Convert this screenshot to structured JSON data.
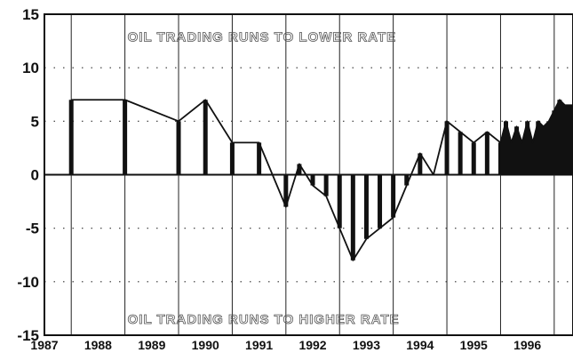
{
  "chart_data": {
    "type": "area",
    "title": "",
    "xlabel": "",
    "ylabel": "",
    "ylim": [
      -15,
      15
    ],
    "xlim": [
      1987,
      1996.85
    ],
    "grid": true,
    "legend": "none",
    "y_ticks": [
      "15",
      "10",
      "5",
      "0",
      "-5",
      "-10",
      "-15"
    ],
    "y_tick_values": [
      15,
      10,
      5,
      0,
      -5,
      -10,
      -15
    ],
    "x_ticks": [
      "1987",
      "1988",
      "1989",
      "1990",
      "1991",
      "1992",
      "1993",
      "1994",
      "1995",
      "1996"
    ],
    "x_tick_values": [
      1987,
      1988,
      1989,
      1990,
      1991,
      1992,
      1993,
      1994,
      1995,
      1996
    ],
    "annotations": [
      {
        "text": "OIL TRADING RUNS TO LOWER RATE",
        "x": 1988.55,
        "y": 12.9
      },
      {
        "text": "OIL TRADING RUNS TO HIGHER RATE",
        "x": 1988.55,
        "y": -13.5
      }
    ],
    "series": [
      {
        "x": [
          1987.5,
          1988.5,
          1989.5,
          1990.0,
          1990.5,
          1991.0,
          1991.5,
          1991.75,
          1992.0,
          1992.25,
          1992.5,
          1992.75,
          1993.0,
          1993.25,
          1993.5,
          1993.75,
          1994.0,
          1994.25,
          1994.5,
          1994.75,
          1995.0,
          1995.25,
          1995.5,
          1995.6,
          1995.7,
          1995.8,
          1995.9,
          1996.0,
          1996.1,
          1996.2,
          1996.3,
          1996.4,
          1996.5,
          1996.6,
          1996.7,
          1996.85
        ],
        "y": [
          7,
          7,
          5,
          7,
          3,
          3,
          -3,
          1,
          -1,
          -2,
          -5,
          -8,
          -6,
          -5,
          -4,
          -1,
          2,
          0,
          5,
          4,
          3,
          4,
          3,
          5,
          3,
          4.5,
          3,
          5,
          3,
          5,
          4.5,
          5,
          6,
          7,
          6.5,
          6.5
        ]
      }
    ],
    "colors": {
      "fill": "#111111",
      "line": "#111111",
      "grid": "#333333",
      "background": "#ffffff"
    }
  }
}
